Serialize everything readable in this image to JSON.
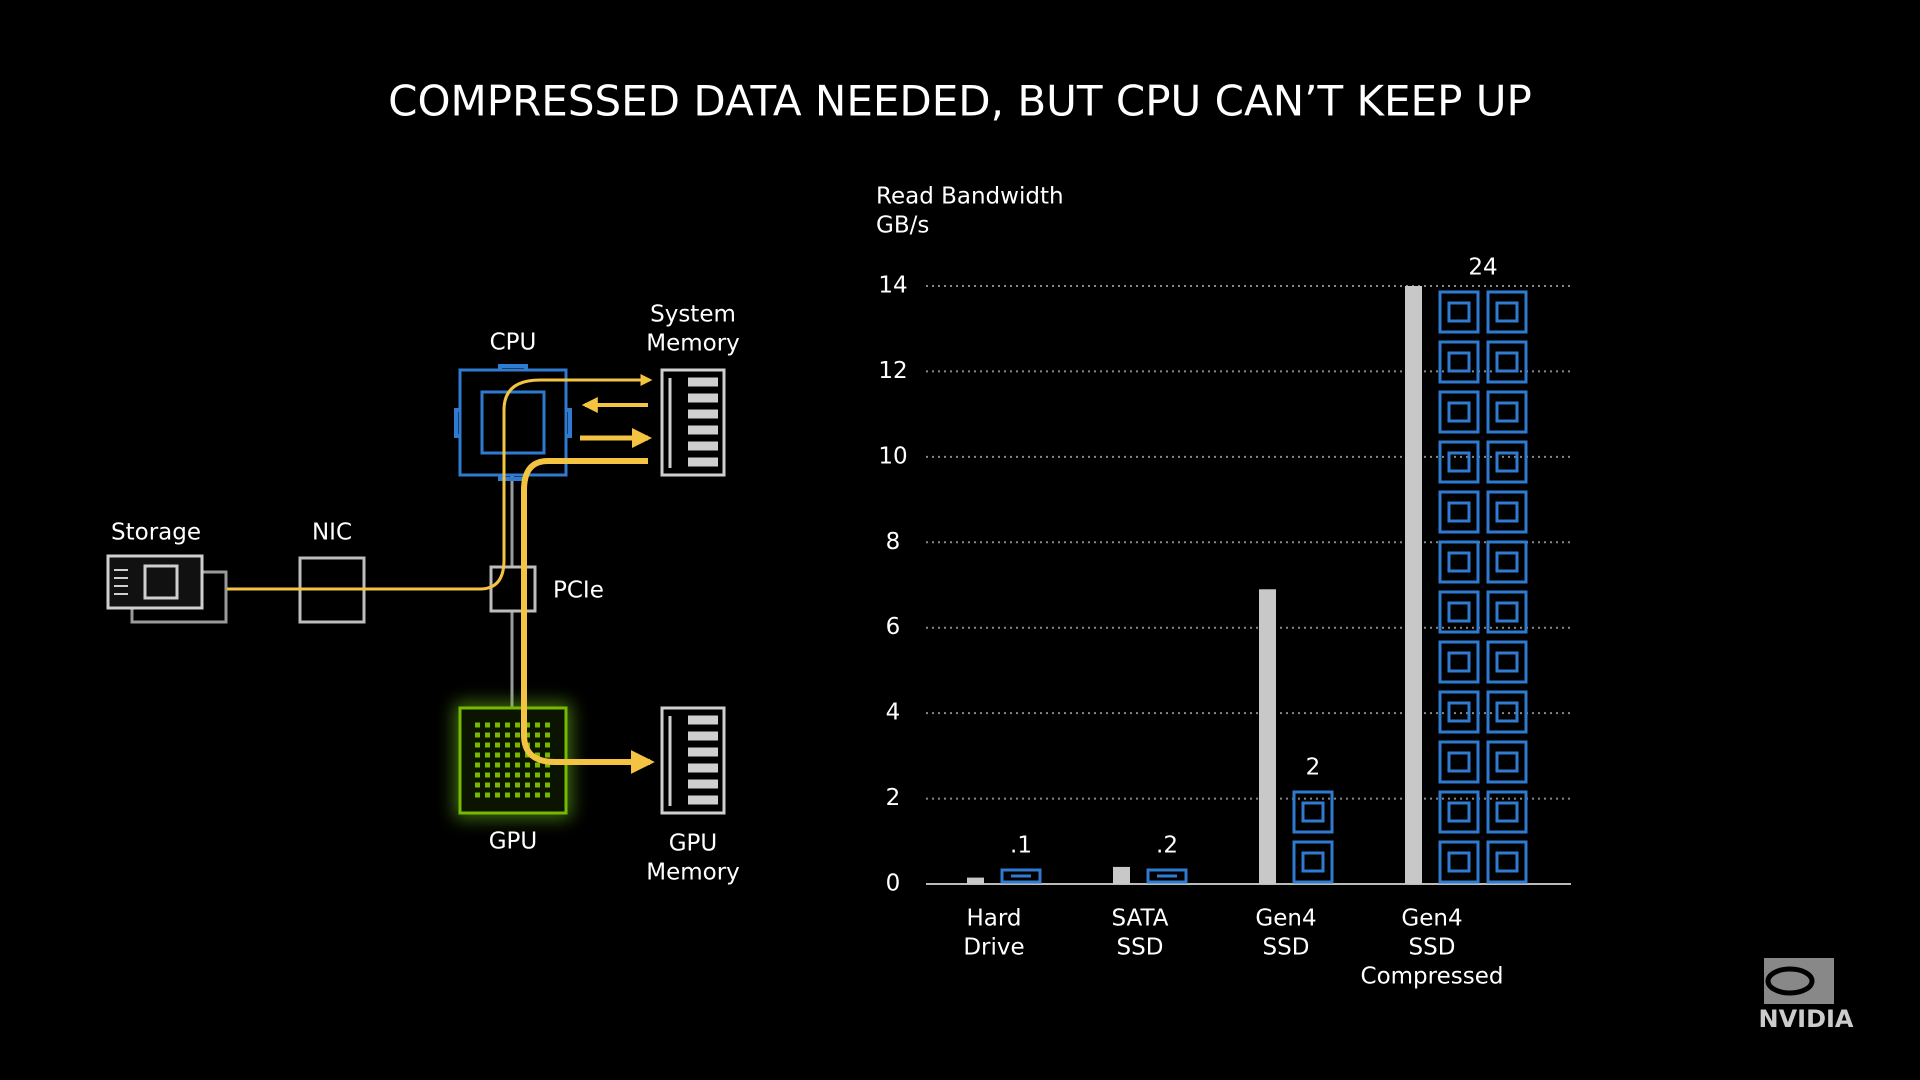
{
  "title": "COMPRESSED DATA NEEDED, BUT CPU CAN’T KEEP UP",
  "diagram": {
    "storage": "Storage",
    "nic": "NIC",
    "pcie": "PCIe",
    "cpu": "CPU",
    "system_memory": [
      "System",
      "Memory"
    ],
    "gpu": "GPU",
    "gpu_memory": [
      "GPU",
      "Memory"
    ]
  },
  "logo": "NVIDIA",
  "chart_data": {
    "type": "bar",
    "ylabel": "Read Bandwidth",
    "yunit": "GB/s",
    "categories": [
      [
        "Hard",
        "Drive"
      ],
      [
        "SATA",
        "SSD"
      ],
      [
        "Gen4",
        "SSD"
      ],
      [
        "Gen4",
        "SSD",
        "Compressed"
      ]
    ],
    "series": [
      {
        "color": "#c8c8c8",
        "values": [
          0.15,
          0.4,
          6.9,
          14
        ]
      },
      {
        "color": "#2f7bd1",
        "values": [
          0.1,
          0.2,
          2,
          24
        ],
        "value_labels": [
          ".1",
          ".2",
          "2",
          "24"
        ]
      }
    ],
    "ylim": [
      0,
      14
    ],
    "yticks": [
      0,
      2,
      4,
      6,
      8,
      10,
      12,
      14
    ],
    "grid": true
  }
}
